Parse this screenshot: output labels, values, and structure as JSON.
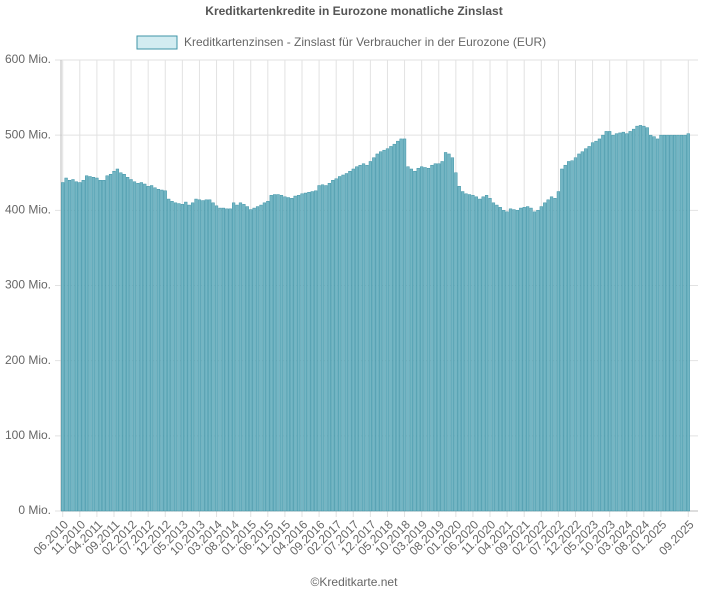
{
  "chart_data": {
    "type": "bar",
    "title": "Kreditkartenkredite in Eurozone monatliche Zinslast",
    "source": "©Kreditkarte.net",
    "categories": [
      "06.2010",
      null,
      null,
      null,
      null,
      "11.2010",
      null,
      null,
      null,
      null,
      "04.2011",
      null,
      null,
      null,
      null,
      "09.2011",
      null,
      null,
      null,
      null,
      "02.2012",
      null,
      null,
      null,
      null,
      "07.2012",
      null,
      null,
      null,
      null,
      "12.2012",
      null,
      null,
      null,
      null,
      "05.2013",
      null,
      null,
      null,
      null,
      "10.2013",
      null,
      null,
      null,
      null,
      "03.2014",
      null,
      null,
      null,
      null,
      "08.2014",
      null,
      null,
      null,
      null,
      "01.2015",
      null,
      null,
      null,
      null,
      "06.2015",
      null,
      null,
      null,
      null,
      "11.2015",
      null,
      null,
      null,
      null,
      "04.2016",
      null,
      null,
      null,
      null,
      "09.2016",
      null,
      null,
      null,
      null,
      "02.2017",
      null,
      null,
      null,
      null,
      "07.2017",
      null,
      null,
      null,
      null,
      "12.2017",
      null,
      null,
      null,
      null,
      "05.2018",
      null,
      null,
      null,
      null,
      "10.2018",
      null,
      null,
      null,
      null,
      "03.2019",
      null,
      null,
      null,
      null,
      "08.2019",
      null,
      null,
      null,
      null,
      "01.2020",
      null,
      null,
      null,
      null,
      "06.2020",
      null,
      null,
      null,
      null,
      "11.2020",
      null,
      null,
      null,
      null,
      "04.2021",
      null,
      null,
      null,
      null,
      "09.2021",
      null,
      null,
      null,
      null,
      "02.2022",
      null,
      null,
      null,
      null,
      "07.2022",
      null,
      null,
      null,
      null,
      "12.2022",
      null,
      null,
      null,
      null,
      "05.2023",
      null,
      null,
      null,
      null,
      "10.2023",
      null,
      null,
      null,
      null,
      "03.2024",
      null,
      null,
      null,
      null,
      "08.2024",
      null,
      null,
      null,
      null,
      "01.2025",
      null,
      null,
      null,
      null,
      null,
      null,
      null,
      "09.2025"
    ],
    "series": [
      {
        "name": "Kreditkartenzinsen - Zinslast für Verbraucher in der Eurozone (EUR)",
        "color": "#74b6c4",
        "border": "#3f94a7",
        "values": [
          437,
          443,
          440,
          441,
          438,
          437,
          440,
          446,
          445,
          444,
          443,
          440,
          440,
          446,
          448,
          452,
          455,
          450,
          448,
          444,
          441,
          438,
          436,
          437,
          435,
          432,
          433,
          430,
          428,
          427,
          426,
          415,
          412,
          410,
          409,
          408,
          411,
          407,
          410,
          415,
          414,
          413,
          414,
          414,
          410,
          406,
          403,
          403,
          402,
          402,
          410,
          407,
          410,
          408,
          405,
          401,
          403,
          405,
          407,
          410,
          412,
          420,
          421,
          421,
          420,
          418,
          417,
          416,
          419,
          420,
          422,
          423,
          424,
          425,
          426,
          433,
          434,
          433,
          436,
          440,
          442,
          445,
          447,
          449,
          452,
          455,
          458,
          460,
          462,
          460,
          465,
          470,
          475,
          478,
          480,
          482,
          485,
          488,
          492,
          495,
          495,
          458,
          455,
          452,
          456,
          458,
          457,
          456,
          460,
          462,
          462,
          465,
          477,
          475,
          470,
          450,
          432,
          425,
          422,
          421,
          420,
          418,
          415,
          418,
          420,
          416,
          410,
          407,
          404,
          400,
          398,
          402,
          401,
          400,
          403,
          404,
          405,
          403,
          398,
          400,
          405,
          410,
          414,
          418,
          416,
          425,
          455,
          460,
          465,
          466,
          470,
          475,
          478,
          482,
          485,
          490,
          492,
          495,
          500,
          505,
          505,
          500,
          502,
          503,
          504,
          502,
          505,
          508,
          512,
          513,
          512,
          510,
          500,
          498,
          495,
          500,
          500,
          500,
          500,
          500,
          500,
          500,
          500,
          502
        ]
      }
    ],
    "ylim": [
      0,
      600
    ],
    "yticks": [
      {
        "value": 0,
        "label": "0 Mio."
      },
      {
        "value": 100,
        "label": "100 Mio."
      },
      {
        "value": 200,
        "label": "200 Mio."
      },
      {
        "value": 300,
        "label": "300 Mio."
      },
      {
        "value": 400,
        "label": "400 Mio."
      },
      {
        "value": 500,
        "label": "500 Mio."
      },
      {
        "value": 600,
        "label": "600 Mio."
      }
    ],
    "grid": true
  }
}
